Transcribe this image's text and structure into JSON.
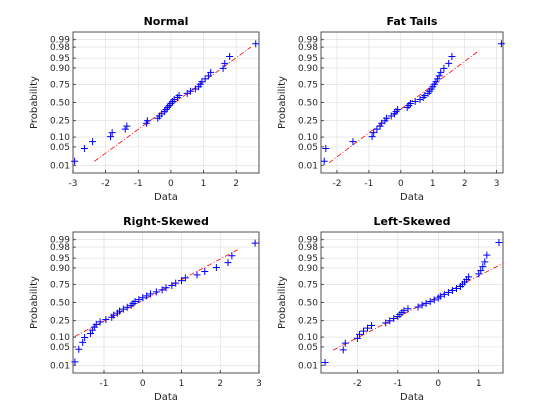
{
  "colors": {
    "background": "#ffffff",
    "axes_box": "#262626",
    "grid": "#dcdcdc",
    "points": "#0000ff",
    "reference_line": "#ff0000",
    "text": "#262626"
  },
  "chart_data": [
    {
      "type": "scatter",
      "subtype": "normal-probability-plot",
      "title": "Normal",
      "xlabel": "Data",
      "ylabel": "Probability",
      "xlim": [
        -3.0,
        2.7
      ],
      "xticks": [
        -3,
        -2,
        -1,
        0,
        1,
        2
      ],
      "yticks": [
        "0.01",
        "0.05",
        "0.10",
        "0.25",
        "0.50",
        "0.75",
        "0.90",
        "0.95",
        "0.98",
        "0.99"
      ],
      "grid": true,
      "marker": "plus",
      "reference_line": {
        "style": "dash-dot",
        "x": [
          -2.35,
          2.45
        ]
      },
      "x": [
        -2.95,
        -2.65,
        -2.4,
        -1.85,
        -1.8,
        -1.4,
        -1.35,
        -0.75,
        -0.72,
        -0.4,
        -0.35,
        -0.28,
        -0.2,
        -0.15,
        -0.1,
        -0.05,
        0.0,
        0.05,
        0.1,
        0.2,
        0.25,
        0.5,
        0.6,
        0.75,
        0.85,
        0.9,
        0.95,
        1.05,
        1.15,
        1.22,
        1.6,
        1.65,
        1.8,
        2.6
      ]
    },
    {
      "type": "scatter",
      "subtype": "normal-probability-plot",
      "title": "Fat Tails",
      "xlabel": "Data",
      "ylabel": "Probability",
      "xlim": [
        -2.5,
        3.2
      ],
      "xticks": [
        -2,
        -1,
        0,
        1,
        2,
        3
      ],
      "yticks": [
        "0.01",
        "0.05",
        "0.10",
        "0.25",
        "0.50",
        "0.75",
        "0.90",
        "0.95",
        "0.98",
        "0.99"
      ],
      "grid": true,
      "marker": "plus",
      "reference_line": {
        "style": "dash-dot",
        "x": [
          -2.25,
          2.45
        ]
      },
      "x": [
        -2.4,
        -2.35,
        -1.5,
        -0.9,
        -0.85,
        -0.75,
        -0.65,
        -0.6,
        -0.5,
        -0.45,
        -0.3,
        -0.2,
        -0.15,
        -0.1,
        0.2,
        0.25,
        0.3,
        0.45,
        0.6,
        0.7,
        0.75,
        0.85,
        0.9,
        0.95,
        1.0,
        1.05,
        1.1,
        1.15,
        1.2,
        1.25,
        1.35,
        1.5,
        1.6,
        3.15
      ]
    },
    {
      "type": "scatter",
      "subtype": "normal-probability-plot",
      "title": "Right-Skewed",
      "xlabel": "Data",
      "ylabel": "Probability",
      "xlim": [
        -1.8,
        3.0
      ],
      "xticks": [
        -1,
        0,
        1,
        2,
        3
      ],
      "yticks": [
        "0.01",
        "0.05",
        "0.10",
        "0.25",
        "0.50",
        "0.75",
        "0.90",
        "0.95",
        "0.98",
        "0.99"
      ],
      "grid": true,
      "marker": "plus",
      "reference_line": {
        "style": "dash-dot",
        "x": [
          -1.75,
          2.45
        ]
      },
      "x": [
        -1.75,
        -1.65,
        -1.55,
        -1.5,
        -1.35,
        -1.3,
        -1.25,
        -1.2,
        -1.1,
        -0.95,
        -0.8,
        -0.75,
        -0.65,
        -0.6,
        -0.5,
        -0.4,
        -0.3,
        -0.25,
        -0.2,
        -0.1,
        0.0,
        0.1,
        0.2,
        0.35,
        0.5,
        0.6,
        0.75,
        0.85,
        1.0,
        1.1,
        1.4,
        1.6,
        1.9,
        2.2,
        2.3,
        2.9
      ]
    },
    {
      "type": "scatter",
      "subtype": "normal-probability-plot",
      "title": "Left-Skewed",
      "xlabel": "Data",
      "ylabel": "Probability",
      "xlim": [
        -2.9,
        1.6
      ],
      "xticks": [
        -2,
        -1,
        0,
        1
      ],
      "yticks": [
        "0.01",
        "0.05",
        "0.10",
        "0.25",
        "0.50",
        "0.75",
        "0.90",
        "0.95",
        "0.98",
        "0.99"
      ],
      "grid": true,
      "marker": "plus",
      "reference_line": {
        "style": "dash-dot",
        "x": [
          -2.6,
          1.6
        ]
      },
      "x": [
        -2.8,
        -2.35,
        -2.3,
        -2.0,
        -1.95,
        -1.85,
        -1.75,
        -1.65,
        -1.3,
        -1.2,
        -1.1,
        -1.0,
        -0.95,
        -0.9,
        -0.85,
        -0.75,
        -0.5,
        -0.4,
        -0.3,
        -0.2,
        -0.1,
        0.0,
        0.05,
        0.15,
        0.25,
        0.35,
        0.45,
        0.55,
        0.6,
        0.65,
        0.7,
        0.75,
        1.0,
        1.05,
        1.1,
        1.15,
        1.2,
        1.5
      ]
    }
  ]
}
